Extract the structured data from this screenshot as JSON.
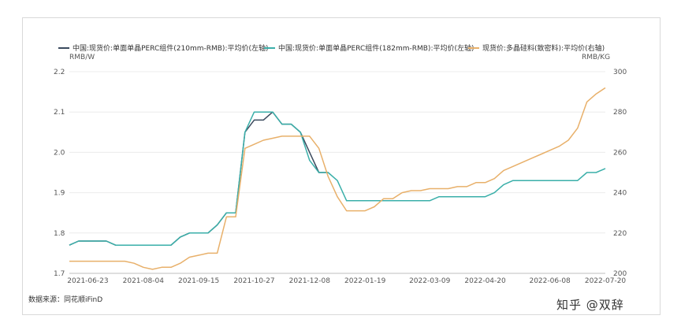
{
  "legend": {
    "items": [
      {
        "label": "中国:现货价:单面单晶PERC组件(210mm-RMB):平均价(左轴)",
        "color": "#3b4a5e"
      },
      {
        "label": "中国:现货价:单面单晶PERC组件(182mm-RMB):平均价(左轴)",
        "color": "#3aafa9"
      },
      {
        "label": "现货价:多晶硅料(致密料):平均价(右轴)",
        "color": "#e8b06a"
      }
    ]
  },
  "units": {
    "left": "RMB/W",
    "right": "RMB/KG"
  },
  "source": "数据来源：同花顺iFinD",
  "watermark": "知乎 @双辞",
  "chart_data": {
    "type": "line",
    "x_ticks": [
      "2021-06-23",
      "2021-08-04",
      "2021-09-15",
      "2021-10-27",
      "2021-12-08",
      "2022-01-19",
      "2022-03-09",
      "2022-04-20",
      "2022-06-08",
      "2022-07-20"
    ],
    "y_left": {
      "unit": "RMB/W",
      "ylim": [
        1.7,
        2.2
      ],
      "ticks": [
        1.7,
        1.8,
        1.9,
        2.0,
        2.1,
        2.2
      ]
    },
    "y_right": {
      "unit": "RMB/KG",
      "ylim": [
        200,
        300
      ],
      "ticks": [
        200,
        220,
        240,
        260,
        280,
        300
      ]
    },
    "grid": "horizontal",
    "legend_position": "top",
    "series": [
      {
        "name": "中国:现货价:单面单晶PERC组件(210mm-RMB):平均价(左轴)",
        "axis": "left",
        "x": [
          "2021-06-09",
          "2021-06-16",
          "2021-06-23",
          "2021-06-30",
          "2021-07-07",
          "2021-07-14",
          "2021-07-21",
          "2021-07-28",
          "2021-08-04",
          "2021-08-11",
          "2021-08-18",
          "2021-08-25",
          "2021-09-01",
          "2021-09-08",
          "2021-09-15",
          "2021-09-22",
          "2021-09-29",
          "2021-10-06",
          "2021-10-13",
          "2021-10-20",
          "2021-10-27",
          "2021-11-03",
          "2021-11-10",
          "2021-11-17",
          "2021-11-24",
          "2021-12-01",
          "2021-12-08",
          "2021-12-15",
          "2021-12-22"
        ],
        "values": [
          1.77,
          1.78,
          1.78,
          1.78,
          1.78,
          1.77,
          1.77,
          1.77,
          1.77,
          1.77,
          1.77,
          1.77,
          1.79,
          1.8,
          1.8,
          1.8,
          1.82,
          1.85,
          1.85,
          2.05,
          2.08,
          2.08,
          2.1,
          2.07,
          2.07,
          2.05,
          2.0,
          1.95,
          1.95
        ]
      },
      {
        "name": "中国:现货价:单面单晶PERC组件(182mm-RMB):平均价(左轴)",
        "axis": "left",
        "x": [
          "2021-06-09",
          "2021-06-16",
          "2021-06-23",
          "2021-06-30",
          "2021-07-07",
          "2021-07-14",
          "2021-07-21",
          "2021-07-28",
          "2021-08-04",
          "2021-08-11",
          "2021-08-18",
          "2021-08-25",
          "2021-09-01",
          "2021-09-08",
          "2021-09-15",
          "2021-09-22",
          "2021-09-29",
          "2021-10-06",
          "2021-10-13",
          "2021-10-20",
          "2021-10-27",
          "2021-11-03",
          "2021-11-10",
          "2021-11-17",
          "2021-11-24",
          "2021-12-01",
          "2021-12-08",
          "2021-12-15",
          "2021-12-22",
          "2021-12-29",
          "2022-01-05",
          "2022-01-12",
          "2022-01-19",
          "2022-01-26",
          "2022-02-02",
          "2022-02-09",
          "2022-02-16",
          "2022-02-23",
          "2022-03-02",
          "2022-03-09",
          "2022-03-16",
          "2022-03-23",
          "2022-03-30",
          "2022-04-06",
          "2022-04-13",
          "2022-04-20",
          "2022-04-27",
          "2022-05-04",
          "2022-05-11",
          "2022-05-18",
          "2022-05-25",
          "2022-06-01",
          "2022-06-08",
          "2022-06-15",
          "2022-06-22",
          "2022-06-29",
          "2022-07-06",
          "2022-07-13",
          "2022-07-20"
        ],
        "values": [
          1.77,
          1.78,
          1.78,
          1.78,
          1.78,
          1.77,
          1.77,
          1.77,
          1.77,
          1.77,
          1.77,
          1.77,
          1.79,
          1.8,
          1.8,
          1.8,
          1.82,
          1.85,
          1.85,
          2.05,
          2.1,
          2.1,
          2.1,
          2.07,
          2.07,
          2.05,
          1.98,
          1.95,
          1.95,
          1.93,
          1.88,
          1.88,
          1.88,
          1.88,
          1.88,
          1.88,
          1.88,
          1.88,
          1.88,
          1.88,
          1.89,
          1.89,
          1.89,
          1.89,
          1.89,
          1.89,
          1.9,
          1.92,
          1.93,
          1.93,
          1.93,
          1.93,
          1.93,
          1.93,
          1.93,
          1.93,
          1.95,
          1.95,
          1.96
        ]
      },
      {
        "name": "现货价:多晶硅料(致密料):平均价(右轴)",
        "axis": "right",
        "x": [
          "2021-06-09",
          "2021-06-16",
          "2021-06-23",
          "2021-06-30",
          "2021-07-07",
          "2021-07-14",
          "2021-07-21",
          "2021-07-28",
          "2021-08-04",
          "2021-08-11",
          "2021-08-18",
          "2021-08-25",
          "2021-09-01",
          "2021-09-08",
          "2021-09-15",
          "2021-09-22",
          "2021-09-29",
          "2021-10-06",
          "2021-10-13",
          "2021-10-20",
          "2021-10-27",
          "2021-11-03",
          "2021-11-10",
          "2021-11-17",
          "2021-11-24",
          "2021-12-01",
          "2021-12-08",
          "2021-12-15",
          "2021-12-22",
          "2021-12-29",
          "2022-01-05",
          "2022-01-12",
          "2022-01-19",
          "2022-01-26",
          "2022-02-02",
          "2022-02-09",
          "2022-02-16",
          "2022-02-23",
          "2022-03-02",
          "2022-03-09",
          "2022-03-16",
          "2022-03-23",
          "2022-03-30",
          "2022-04-06",
          "2022-04-13",
          "2022-04-20",
          "2022-04-27",
          "2022-05-04",
          "2022-05-11",
          "2022-05-18",
          "2022-05-25",
          "2022-06-01",
          "2022-06-08",
          "2022-06-15",
          "2022-06-22",
          "2022-06-29",
          "2022-07-06",
          "2022-07-13",
          "2022-07-20"
        ],
        "values": [
          206,
          206,
          206,
          206,
          206,
          206,
          206,
          205,
          203,
          202,
          203,
          203,
          205,
          208,
          209,
          210,
          210,
          228,
          228,
          262,
          264,
          266,
          267,
          268,
          268,
          268,
          268,
          262,
          248,
          238,
          231,
          231,
          231,
          233,
          237,
          237,
          240,
          241,
          241,
          242,
          242,
          242,
          243,
          243,
          245,
          245,
          247,
          251,
          253,
          255,
          257,
          259,
          261,
          263,
          266,
          272,
          285,
          289,
          292
        ]
      }
    ]
  }
}
